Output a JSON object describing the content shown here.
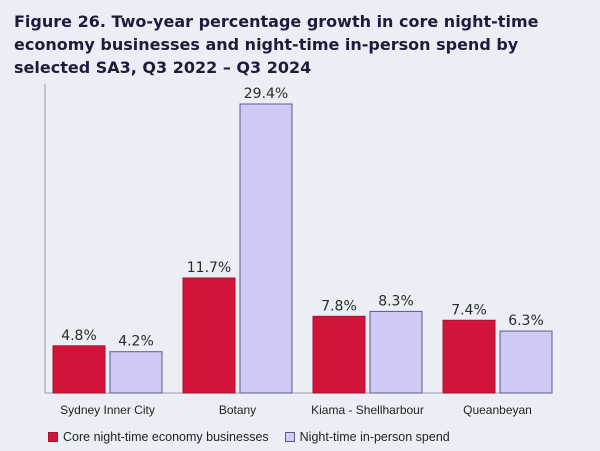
{
  "chart_data": {
    "type": "bar",
    "title": "Figure 26. Two-year percentage growth in core night-time economy businesses and night-time in-person spend by selected SA3, Q3 2022 – Q3 2024",
    "categories": [
      "Sydney Inner City",
      "Botany",
      "Kiama - Shellharbour",
      "Queanbeyan"
    ],
    "series": [
      {
        "name": "Core night-time economy businesses",
        "values": [
          4.8,
          11.7,
          7.8,
          7.4
        ],
        "labels": [
          "4.8%",
          "11.7%",
          "7.8%",
          "7.4%"
        ],
        "color": "#d2143a",
        "border": "#b00f2e"
      },
      {
        "name": "Night-time in-person spend",
        "values": [
          4.2,
          29.4,
          8.3,
          6.3
        ],
        "labels": [
          "4.2%",
          "29.4%",
          "8.3%",
          "6.3%"
        ],
        "color": "#cfc9f6",
        "border": "#5a5a8a"
      }
    ],
    "xlabel": "",
    "ylabel": "",
    "ylim": [
      0,
      29.4
    ],
    "grid": false,
    "legend": "bottom-left"
  }
}
